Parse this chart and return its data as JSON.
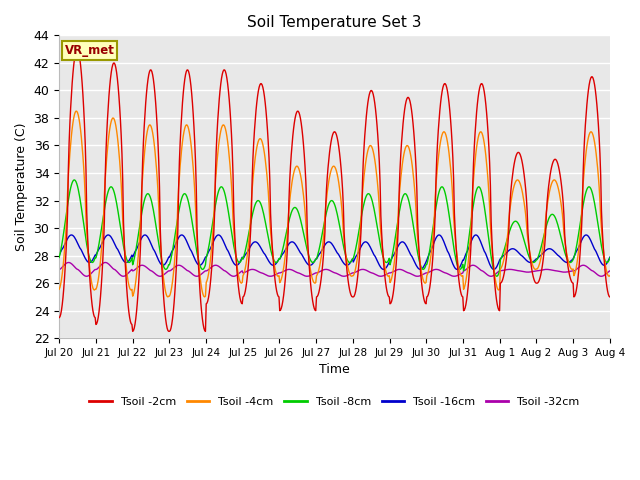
{
  "title": "Soil Temperature Set 3",
  "xlabel": "Time",
  "ylabel": "Soil Temperature (C)",
  "ylim": [
    22,
    44
  ],
  "yticks": [
    22,
    24,
    26,
    28,
    30,
    32,
    34,
    36,
    38,
    40,
    42,
    44
  ],
  "x_labels": [
    "Jul 20",
    "Jul 21",
    "Jul 22",
    "Jul 23",
    "Jul 24",
    "Jul 25",
    "Jul 26",
    "Jul 27",
    "Jul 28",
    "Jul 29",
    "Jul 30",
    "Jul 31",
    "Aug 1",
    "Aug 2",
    "Aug 3",
    "Aug 4"
  ],
  "series_colors": [
    "#dd0000",
    "#ff8800",
    "#00cc00",
    "#0000cc",
    "#aa00aa"
  ],
  "series_labels": [
    "Tsoil -2cm",
    "Tsoil -4cm",
    "Tsoil -8cm",
    "Tsoil -16cm",
    "Tsoil -32cm"
  ],
  "legend_label": "VR_met",
  "background_color": "#e8e8e8",
  "grid_color": "#ffffff",
  "n_days": 15,
  "pts_per_day": 48,
  "peaks_2cm": [
    43.0,
    42.0,
    41.5,
    41.5,
    41.5,
    40.5,
    38.5,
    37.0,
    40.0,
    39.5,
    40.5,
    40.5,
    35.5,
    35.0,
    41.0
  ],
  "mins_2cm": [
    23.5,
    23.0,
    22.5,
    22.5,
    24.5,
    25.0,
    24.0,
    25.0,
    25.0,
    24.5,
    25.0,
    24.0,
    26.0,
    26.0,
    25.0
  ],
  "peaks_4cm": [
    38.5,
    38.0,
    37.5,
    37.5,
    37.5,
    36.5,
    34.5,
    34.5,
    36.0,
    36.0,
    37.0,
    37.0,
    33.5,
    33.5,
    37.0
  ],
  "mins_4cm": [
    25.5,
    25.5,
    25.0,
    25.0,
    26.0,
    26.5,
    26.0,
    26.5,
    26.5,
    26.0,
    26.5,
    25.5,
    27.0,
    27.0,
    26.5
  ],
  "peaks_8cm": [
    33.5,
    33.0,
    32.5,
    32.5,
    33.0,
    32.0,
    31.5,
    32.0,
    32.5,
    32.5,
    33.0,
    33.0,
    30.5,
    31.0,
    33.0
  ],
  "mins_8cm": [
    27.5,
    27.5,
    27.0,
    27.0,
    27.5,
    27.5,
    27.5,
    27.5,
    27.5,
    27.0,
    27.0,
    26.5,
    27.5,
    27.5,
    27.5
  ],
  "peaks_16cm": [
    29.5,
    29.5,
    29.5,
    29.5,
    29.5,
    29.0,
    29.0,
    29.0,
    29.0,
    29.0,
    29.5,
    29.5,
    28.5,
    28.5,
    29.5
  ],
  "mins_16cm": [
    27.5,
    27.5,
    27.3,
    27.3,
    27.3,
    27.3,
    27.3,
    27.3,
    27.0,
    27.0,
    27.0,
    27.0,
    27.5,
    27.5,
    27.3
  ],
  "peaks_32cm": [
    27.5,
    27.5,
    27.3,
    27.3,
    27.3,
    27.0,
    27.0,
    27.0,
    27.0,
    27.0,
    27.0,
    27.3,
    27.0,
    27.0,
    27.3
  ],
  "mins_32cm": [
    26.5,
    26.5,
    26.5,
    26.5,
    26.5,
    26.5,
    26.5,
    26.5,
    26.5,
    26.5,
    26.5,
    26.5,
    26.8,
    26.8,
    26.5
  ],
  "phase_2cm": 0.0,
  "phase_4cm": 0.15,
  "phase_8cm": 0.5,
  "phase_16cm": 1.0,
  "phase_32cm": 1.5
}
